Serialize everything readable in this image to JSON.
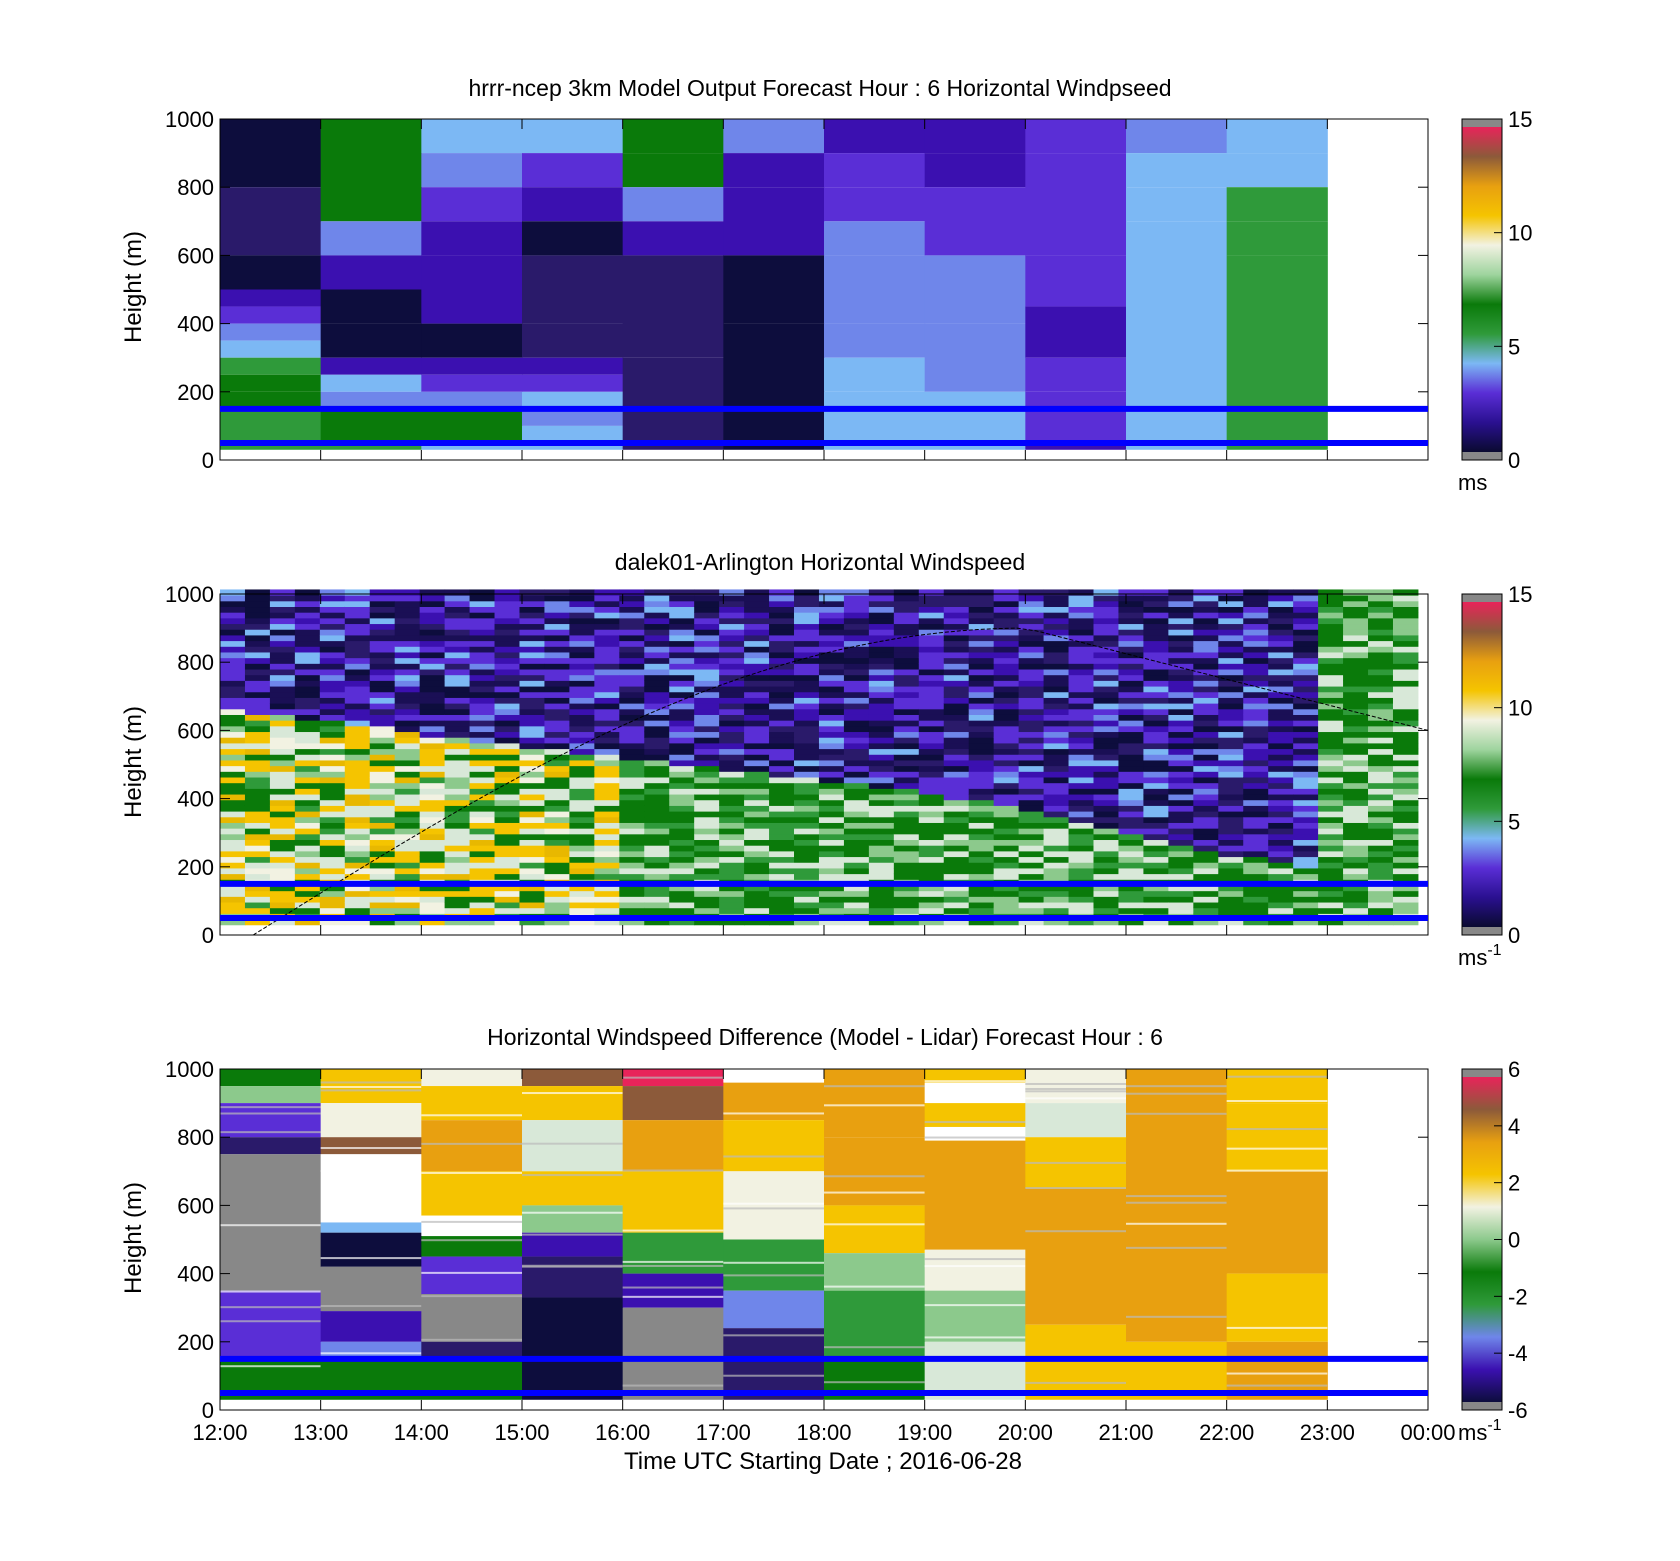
{
  "colors": {
    "colormap": [
      "#e1e1e1",
      "#2a1a6a",
      "#0d0d3d",
      "#3b10b0",
      "#5a2ed6",
      "#6f86ea",
      "#7cb8f4",
      "#0a7a0a",
      "#2f9a3a",
      "#8cc98c",
      "#d8e8d8",
      "#f2f2e2",
      "#f5c400",
      "#e8a010",
      "#8c5a3a",
      "#e8245a",
      "#888888"
    ],
    "reference_lines": "#0000ff",
    "gap": "#888888"
  },
  "chart_data": [
    {
      "type": "heatmap",
      "title": "hrrr-ncep 3km Model Output   Forecast Hour : 6 Horizontal Windpseed",
      "xlabel": "",
      "ylabel": "Height (m)",
      "x_range": [
        "12:00",
        "00:00"
      ],
      "ylim": [
        0,
        1000
      ],
      "yticks": [
        "0",
        "200",
        "400",
        "600",
        "800",
        "1000"
      ],
      "colorbar": {
        "ticks": [
          "0",
          "5",
          "10",
          "15"
        ],
        "min": 0,
        "max": 15,
        "unit": "ms",
        "unit_sup": ""
      },
      "reference_lines_m": [
        50,
        150
      ],
      "hourly_columns": [
        {
          "hour": "12:00",
          "layers": [
            [
              1000,
              800,
              2
            ],
            [
              800,
              600,
              1
            ],
            [
              600,
              500,
              2
            ],
            [
              500,
              450,
              3
            ],
            [
              450,
              400,
              4
            ],
            [
              400,
              350,
              5
            ],
            [
              350,
              300,
              6
            ],
            [
              300,
              250,
              8
            ],
            [
              250,
              200,
              7
            ],
            [
              200,
              150,
              7
            ],
            [
              150,
              50,
              8
            ],
            [
              50,
              30,
              8
            ]
          ]
        },
        {
          "hour": "13:00",
          "layers": [
            [
              1000,
              700,
              7
            ],
            [
              700,
              600,
              5
            ],
            [
              600,
              500,
              3
            ],
            [
              500,
              400,
              2
            ],
            [
              400,
              300,
              2
            ],
            [
              300,
              250,
              3
            ],
            [
              250,
              200,
              6
            ],
            [
              200,
              150,
              5
            ],
            [
              150,
              50,
              7
            ],
            [
              50,
              30,
              8
            ]
          ]
        },
        {
          "hour": "14:00",
          "layers": [
            [
              1000,
              900,
              6
            ],
            [
              900,
              800,
              5
            ],
            [
              800,
              700,
              4
            ],
            [
              700,
              600,
              3
            ],
            [
              600,
              400,
              3
            ],
            [
              400,
              300,
              2
            ],
            [
              300,
              250,
              3
            ],
            [
              250,
              200,
              4
            ],
            [
              200,
              150,
              5
            ],
            [
              150,
              50,
              7
            ],
            [
              50,
              30,
              6
            ]
          ]
        },
        {
          "hour": "15:00",
          "layers": [
            [
              1000,
              900,
              6
            ],
            [
              900,
              800,
              4
            ],
            [
              800,
              700,
              3
            ],
            [
              700,
              600,
              2
            ],
            [
              600,
              400,
              1
            ],
            [
              400,
              300,
              1
            ],
            [
              300,
              250,
              3
            ],
            [
              250,
              200,
              4
            ],
            [
              200,
              150,
              6
            ],
            [
              150,
              100,
              5
            ],
            [
              100,
              50,
              6
            ],
            [
              50,
              30,
              6
            ]
          ]
        },
        {
          "hour": "16:00",
          "layers": [
            [
              1000,
              900,
              7
            ],
            [
              900,
              800,
              7
            ],
            [
              800,
              700,
              5
            ],
            [
              700,
              600,
              3
            ],
            [
              600,
              300,
              1
            ],
            [
              300,
              150,
              1
            ],
            [
              150,
              30,
              1
            ]
          ]
        },
        {
          "hour": "17:00",
          "layers": [
            [
              1000,
              900,
              5
            ],
            [
              900,
              800,
              3
            ],
            [
              800,
              600,
              3
            ],
            [
              600,
              400,
              2
            ],
            [
              400,
              150,
              2
            ],
            [
              150,
              30,
              2
            ]
          ]
        },
        {
          "hour": "18:00",
          "layers": [
            [
              1000,
              900,
              3
            ],
            [
              900,
              800,
              4
            ],
            [
              800,
              700,
              4
            ],
            [
              700,
              600,
              5
            ],
            [
              600,
              400,
              5
            ],
            [
              400,
              300,
              5
            ],
            [
              300,
              200,
              6
            ],
            [
              200,
              150,
              6
            ],
            [
              150,
              30,
              6
            ]
          ]
        },
        {
          "hour": "19:00",
          "layers": [
            [
              1000,
              900,
              3
            ],
            [
              900,
              800,
              3
            ],
            [
              800,
              600,
              4
            ],
            [
              600,
              400,
              5
            ],
            [
              400,
              200,
              5
            ],
            [
              200,
              150,
              6
            ],
            [
              150,
              30,
              6
            ]
          ]
        },
        {
          "hour": "20:00",
          "layers": [
            [
              1000,
              900,
              4
            ],
            [
              900,
              600,
              4
            ],
            [
              600,
              450,
              4
            ],
            [
              450,
              300,
              3
            ],
            [
              300,
              200,
              4
            ],
            [
              200,
              50,
              4
            ],
            [
              50,
              30,
              3
            ]
          ]
        },
        {
          "hour": "21:00",
          "layers": [
            [
              1000,
              900,
              5
            ],
            [
              900,
              800,
              6
            ],
            [
              800,
              700,
              6
            ],
            [
              700,
              150,
              6
            ],
            [
              150,
              30,
              6
            ]
          ]
        },
        {
          "hour": "22:00",
          "layers": [
            [
              1000,
              900,
              6
            ],
            [
              900,
              800,
              6
            ],
            [
              800,
              700,
              8
            ],
            [
              700,
              600,
              8
            ],
            [
              600,
              500,
              8
            ],
            [
              500,
              150,
              8
            ],
            [
              150,
              30,
              8
            ]
          ]
        }
      ]
    },
    {
      "type": "heatmap",
      "title": "dalek01-Arlington  Horizontal Windspeed",
      "xlabel": "",
      "ylabel": "Height (m)",
      "x_range": [
        "12:00",
        "00:00"
      ],
      "ylim": [
        0,
        1000
      ],
      "yticks": [
        "0",
        "200",
        "400",
        "600",
        "800",
        "1000"
      ],
      "colorbar": {
        "ticks": [
          "0",
          "5",
          "10",
          "15"
        ],
        "min": 0,
        "max": 15,
        "unit": "ms",
        "unit_sup": "-1"
      },
      "reference_lines_m": [
        50,
        150
      ],
      "boundary_curve": {
        "peak_time": "20:00",
        "peak_height_m": 900,
        "start": [
          "12:20",
          0
        ],
        "end": [
          "00:00",
          600
        ]
      },
      "note": "high-resolution lidar profile: green/yellow (3-10 m/s) near surface, purple (0-3 m/s) aloft, green column after 23:00"
    },
    {
      "type": "heatmap",
      "title": "Horizontal Windspeed Difference (Model - Lidar) Forecast Hour : 6",
      "xlabel": "Time UTC  Starting Date ; 2016-06-28",
      "ylabel": "Height (m)",
      "xticks": [
        "12:00",
        "13:00",
        "14:00",
        "15:00",
        "16:00",
        "17:00",
        "18:00",
        "19:00",
        "20:00",
        "21:00",
        "22:00",
        "23:00",
        "00:00"
      ],
      "ylim": [
        0,
        1000
      ],
      "yticks": [
        "0",
        "200",
        "400",
        "600",
        "800",
        "1000"
      ],
      "colorbar": {
        "ticks": [
          "-6",
          "-4",
          "-2",
          "0",
          "2",
          "4",
          "6"
        ],
        "min": -6,
        "max": 6,
        "unit": "ms",
        "unit_sup": "-1"
      },
      "reference_lines_m": [
        50,
        150
      ]
    }
  ]
}
